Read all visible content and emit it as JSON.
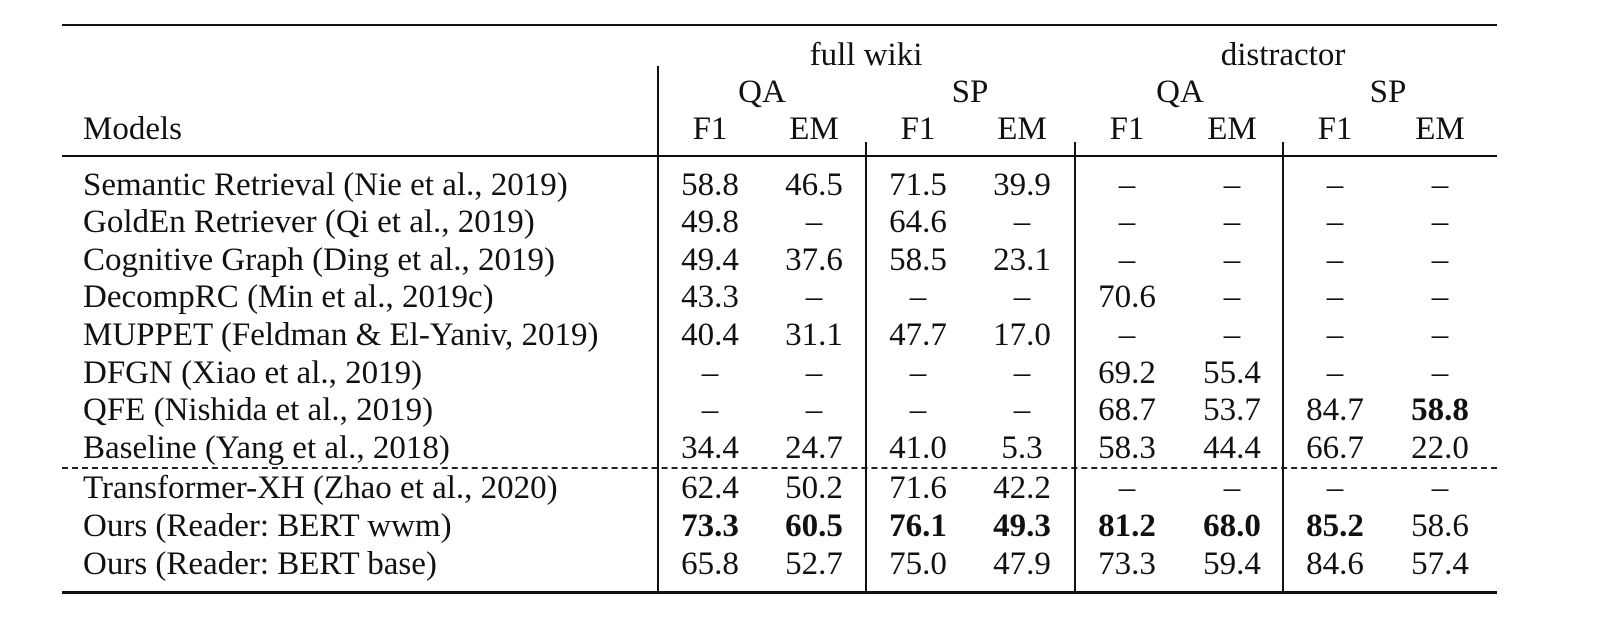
{
  "table": {
    "groups": [
      {
        "label": "full wiki",
        "sub": [
          {
            "label": "QA",
            "cols": [
              "F1",
              "EM"
            ]
          },
          {
            "label": "SP",
            "cols": [
              "F1",
              "EM"
            ]
          }
        ]
      },
      {
        "label": "distractor",
        "sub": [
          {
            "label": "QA",
            "cols": [
              "F1",
              "EM"
            ]
          },
          {
            "label": "SP",
            "cols": [
              "F1",
              "EM"
            ]
          }
        ]
      }
    ],
    "model_header": "Models",
    "rows": [
      {
        "model": "Semantic Retrieval (Nie et al., 2019)",
        "values": [
          "58.8",
          "46.5",
          "71.5",
          "39.9",
          "–",
          "–",
          "–",
          "–"
        ]
      },
      {
        "model": "GoldEn Retriever (Qi et al., 2019)",
        "values": [
          "49.8",
          "–",
          "64.6",
          "–",
          "–",
          "–",
          "–",
          "–"
        ]
      },
      {
        "model": "Cognitive Graph (Ding et al., 2019)",
        "values": [
          "49.4",
          "37.6",
          "58.5",
          "23.1",
          "–",
          "–",
          "–",
          "–"
        ]
      },
      {
        "model": "DecompRC (Min et al., 2019c)",
        "values": [
          "43.3",
          "–",
          "–",
          "–",
          "70.6",
          "–",
          "–",
          "–"
        ]
      },
      {
        "model": "MUPPET (Feldman & El-Yaniv, 2019)",
        "values": [
          "40.4",
          "31.1",
          "47.7",
          "17.0",
          "–",
          "–",
          "–",
          "–"
        ]
      },
      {
        "model": "DFGN (Xiao et al., 2019)",
        "values": [
          "–",
          "–",
          "–",
          "–",
          "69.2",
          "55.4",
          "–",
          "–"
        ]
      },
      {
        "model": "QFE (Nishida et al., 2019)",
        "values": [
          "–",
          "–",
          "–",
          "–",
          "68.7",
          "53.7",
          "84.7",
          "58.8"
        ],
        "bold": [
          7
        ]
      },
      {
        "model": "Baseline (Yang et al., 2018)",
        "values": [
          "34.4",
          "24.7",
          "41.0",
          "5.3",
          "58.3",
          "44.4",
          "66.7",
          "22.0"
        ]
      },
      {
        "model": "Transformer-XH (Zhao et al., 2020)",
        "values": [
          "62.4",
          "50.2",
          "71.6",
          "42.2",
          "–",
          "–",
          "–",
          "–"
        ]
      },
      {
        "model": "Ours (Reader: BERT wwm)",
        "values": [
          "73.3",
          "60.5",
          "76.1",
          "49.3",
          "81.2",
          "68.0",
          "85.2",
          "58.6"
        ],
        "bold": [
          0,
          1,
          2,
          3,
          4,
          5,
          6
        ]
      },
      {
        "model": "Ours (Reader: BERT base)",
        "values": [
          "65.8",
          "52.7",
          "75.0",
          "47.9",
          "73.3",
          "59.4",
          "84.6",
          "57.4"
        ]
      }
    ]
  }
}
